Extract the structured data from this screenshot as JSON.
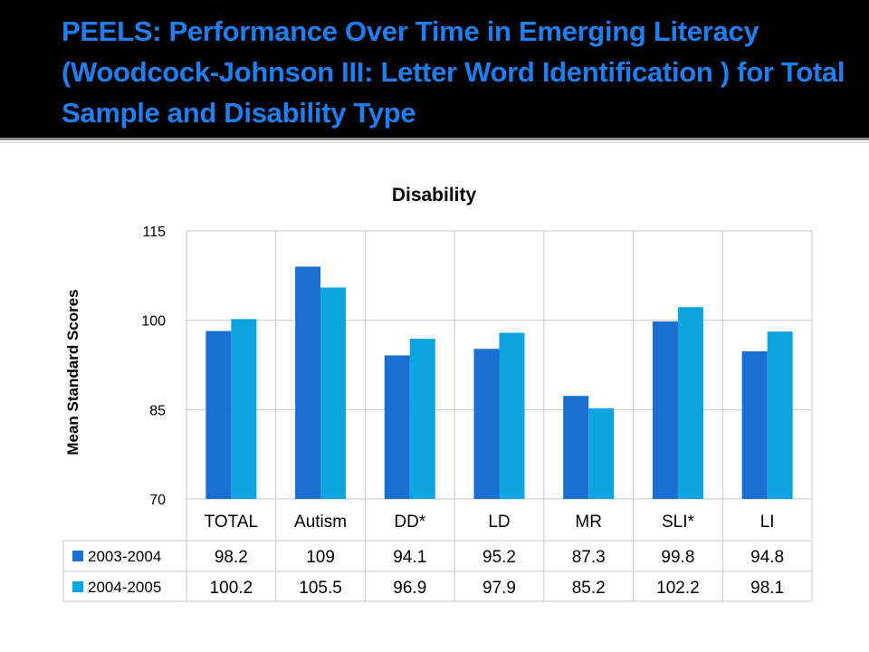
{
  "slide": {
    "title": "PEELS:  Performance Over Time in Emerging Literacy (Woodcock-Johnson  III:  Letter Word Identification ) for Total Sample and Disability Type",
    "title_color": "#1f7ff0"
  },
  "chart_data": {
    "type": "bar",
    "title": "Disability",
    "xlabel": "",
    "ylabel": "Mean Standard Scores",
    "ylim": [
      70,
      115
    ],
    "yticks": [
      "70",
      "85",
      "100",
      "115"
    ],
    "grid": true,
    "legend": "data-table",
    "categories": [
      "TOTAL",
      "Autism",
      "DD*",
      "LD",
      "MR",
      "SLI*",
      "LI"
    ],
    "series": [
      {
        "name": "2003-2004",
        "color": "#1a6fd0",
        "values": [
          98.2,
          109,
          94.1,
          95.2,
          87.3,
          99.8,
          94.8
        ],
        "labels": [
          "98.2",
          "109",
          "94.1",
          "95.2",
          "87.3",
          "99.8",
          "94.8"
        ]
      },
      {
        "name": "2004-2005",
        "color": "#0ca5e0",
        "values": [
          100.2,
          105.5,
          96.9,
          97.9,
          85.2,
          102.2,
          98.1
        ],
        "labels": [
          "100.2",
          "105.5",
          "96.9",
          "97.9",
          "85.2",
          "102.2",
          "98.1"
        ]
      }
    ]
  }
}
